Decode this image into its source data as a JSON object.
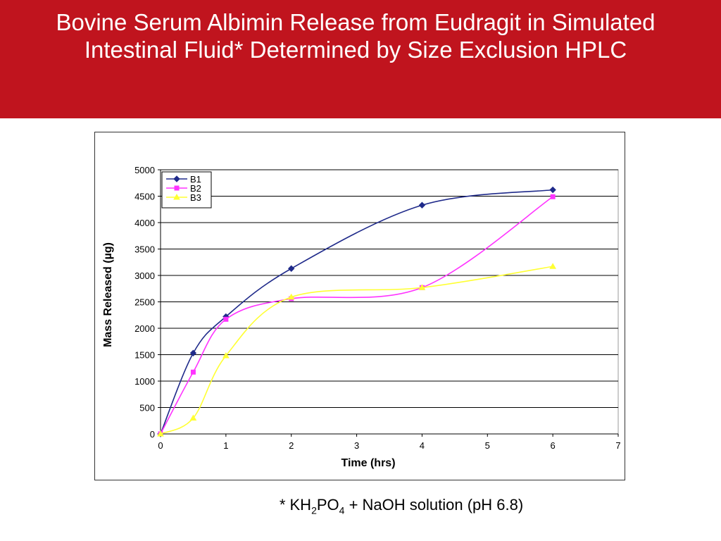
{
  "title": "Bovine Serum Albimin Release from Eudragit in Simulated Intestinal Fluid* Determined by Size Exclusion HPLC",
  "chart_data": {
    "type": "line",
    "x_label": "Time (hrs)",
    "y_label": "Mass Released (µg)",
    "x": [
      0,
      0.5,
      1,
      2,
      4,
      6
    ],
    "series": [
      {
        "name": "B1",
        "color": "#1f2a8a",
        "marker": "diamond",
        "values": [
          0,
          1530,
          2220,
          3130,
          4330,
          4620
        ]
      },
      {
        "name": "B2",
        "color": "#ff33ff",
        "marker": "square",
        "values": [
          0,
          1170,
          2170,
          2560,
          2770,
          4490
        ]
      },
      {
        "name": "B3",
        "color": "#ffff33",
        "marker": "triangle",
        "values": [
          0,
          300,
          1480,
          2590,
          2770,
          3170
        ]
      }
    ],
    "xlim": [
      0,
      7
    ],
    "xticks": [
      0,
      1,
      2,
      3,
      4,
      5,
      6,
      7
    ],
    "ylim": [
      0,
      5000
    ],
    "yticks": [
      0,
      500,
      1000,
      1500,
      2000,
      2500,
      3000,
      3500,
      4000,
      4500,
      5000
    ],
    "grid": true,
    "legend": "top-left",
    "smooth": true
  },
  "footnote": [
    "* KH",
    "2",
    "PO",
    "4",
    " + NaOH solution (pH 6.8)"
  ]
}
